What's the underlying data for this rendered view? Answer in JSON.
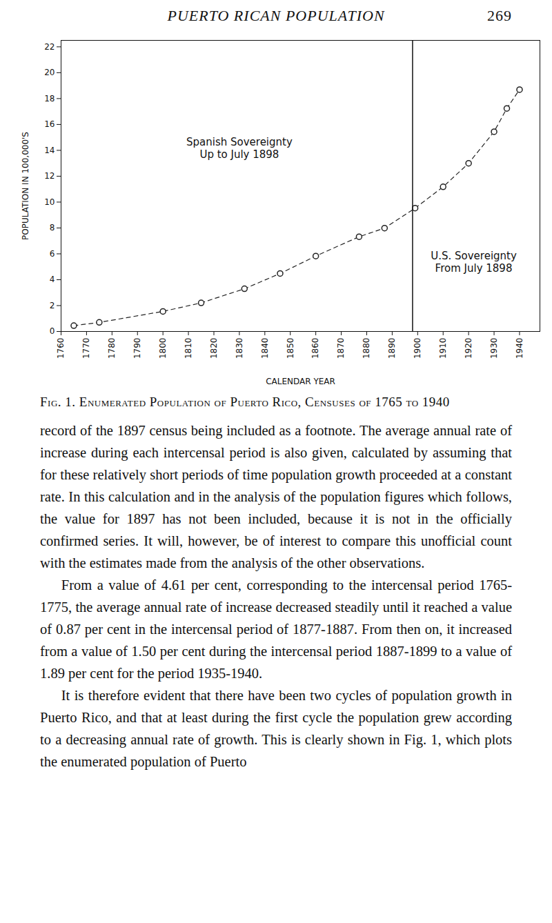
{
  "header": {
    "title": "PUERTO RICAN POPULATION",
    "page": "269"
  },
  "chart_data": {
    "type": "line",
    "x_label": "CALENDAR YEAR",
    "y_label": "POPULATION IN 100,000'S",
    "x": [
      1765,
      1775,
      1800,
      1815,
      1832,
      1846,
      1860,
      1877,
      1887,
      1899,
      1910,
      1920,
      1930,
      1935,
      1940
    ],
    "values": [
      0.45,
      0.7,
      1.55,
      2.21,
      3.3,
      4.48,
      5.83,
      7.32,
      7.99,
      9.53,
      11.18,
      13.0,
      15.44,
      17.24,
      18.69
    ],
    "color": "#222222",
    "marker": "circle",
    "line_style": "dashed",
    "xlim": [
      1760,
      1948
    ],
    "xticks": [
      1760,
      1770,
      1780,
      1790,
      1800,
      1810,
      1820,
      1830,
      1840,
      1850,
      1860,
      1870,
      1880,
      1890,
      1900,
      1910,
      1920,
      1930,
      1940
    ],
    "ylim": [
      0,
      22.5
    ],
    "yticks": [
      0,
      2,
      4,
      6,
      8,
      10,
      12,
      14,
      16,
      18,
      20,
      22
    ],
    "grid": false,
    "vertical_line": 1898,
    "annotations": [
      {
        "text": "Spanish Sovereignty\nUp to July 1898",
        "x": 1830,
        "y": 14.2
      },
      {
        "text": "U.S. Sovereignty\nFrom July 1898",
        "x": 1922,
        "y": 5.4
      }
    ]
  },
  "caption": "Fig. 1. Enumerated Population of Puerto Rico, Censuses of 1765 to 1940",
  "paragraphs": [
    "record of the 1897 census being included as a footnote. The average annual rate of increase during each intercensal period is also given, calculated by assuming that for these relatively short periods of time population growth proceeded at a constant rate. In this calculation and in the analysis of the population figures which follows, the value for 1897 has not been included, because it is not in the officially confirmed series. It will, however, be of interest to compare this unofficial count with the estimates made from the analysis of the other observations.",
    "From a value of 4.61 per cent, corresponding to the intercensal period 1765-1775, the average annual rate of increase decreased steadily until it reached a value of 0.87 per cent in the intercensal period of 1877-1887. From then on, it increased from a value of 1.50 per cent during the intercensal period 1887-1899 to a value of 1.89 per cent for the period 1935-1940.",
    "It is therefore evident that there have been two cycles of population growth in Puerto Rico, and that at least during the first cycle the population grew according to a decreasing annual rate of growth. This is clearly shown in Fig. 1, which plots the enumerated population of Puerto"
  ]
}
